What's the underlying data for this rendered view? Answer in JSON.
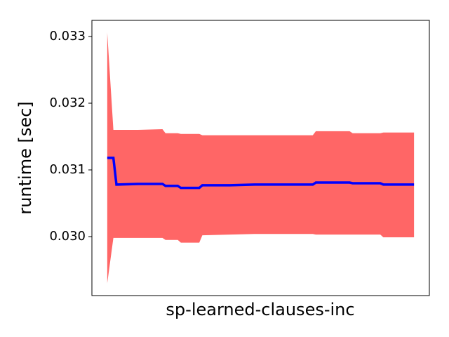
{
  "chart_data": {
    "type": "band-line",
    "x_label": "sp-learned-clauses-inc",
    "y_label": "runtime [sec]",
    "x": [
      0,
      2,
      3,
      10,
      18,
      19,
      23,
      24,
      30,
      31,
      40,
      48,
      67,
      68,
      79,
      80,
      89,
      90,
      100
    ],
    "xlim": [
      -5,
      105
    ],
    "ylim": [
      0.029116,
      0.033242
    ],
    "yticks": [
      {
        "value": 0.03,
        "label": "0.030"
      },
      0.031,
      0.032,
      0.033
    ],
    "line": {
      "color": "#0000ff",
      "values": [
        0.03118,
        0.03118,
        0.03078,
        0.03079,
        0.03079,
        0.03076,
        0.03076,
        0.03073,
        0.03073,
        0.03077,
        0.03077,
        0.03078,
        0.03078,
        0.03081,
        0.03081,
        0.0308,
        0.0308,
        0.03078,
        0.03078
      ]
    },
    "band": {
      "color": "#ff6666",
      "upper": [
        0.03306,
        0.0316,
        0.0316,
        0.0316,
        0.03161,
        0.03155,
        0.03155,
        0.03154,
        0.03154,
        0.03152,
        0.03152,
        0.03152,
        0.03152,
        0.03158,
        0.03158,
        0.03155,
        0.03155,
        0.03156,
        0.03156
      ],
      "lower": [
        0.0293,
        0.02998,
        0.02998,
        0.02998,
        0.02998,
        0.02995,
        0.02995,
        0.02991,
        0.02991,
        0.03002,
        0.03003,
        0.03004,
        0.03004,
        0.03003,
        0.03003,
        0.03003,
        0.03003,
        0.02999,
        0.02999
      ]
    }
  }
}
